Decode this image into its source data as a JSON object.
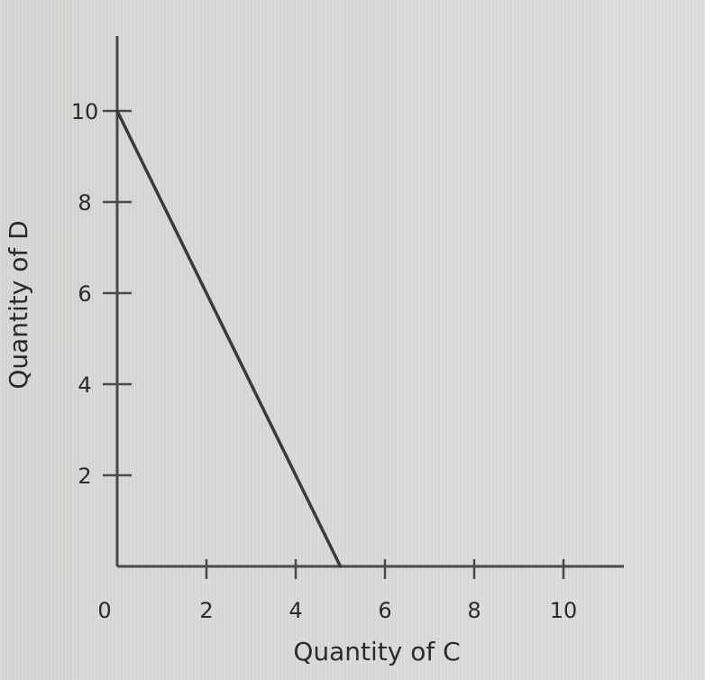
{
  "chart_data": {
    "type": "line",
    "title": "",
    "xlabel": "Quantity of C",
    "ylabel": "Quantity of D",
    "xlim": [
      0,
      11.5
    ],
    "ylim": [
      0,
      11.5
    ],
    "x_ticks": [
      2,
      4,
      6,
      8,
      10
    ],
    "y_ticks": [
      2,
      4,
      6,
      8,
      10
    ],
    "origin_label": "0",
    "grid": false,
    "series": [
      {
        "x": [
          0,
          5
        ],
        "y": [
          10,
          0
        ]
      }
    ],
    "colors": {
      "axis": "#4a4a4a",
      "line": "#3a3a3a",
      "text": "#2b2b2b"
    }
  }
}
